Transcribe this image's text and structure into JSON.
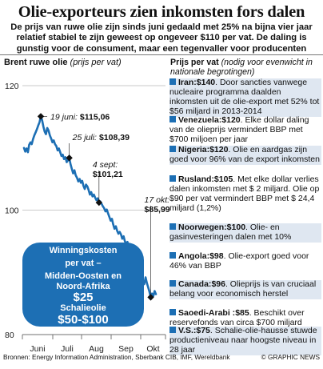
{
  "header": {
    "title": "Olie-exporteurs zien inkomsten fors dalen",
    "subtitle": "De prijs van ruwe olie zijn sinds juni gedaald met 25% na bijna vier jaar relatief stabiel te zijn geweest op ongeveer $110 per vat. De daling is gunstig voor de consument, maar een tegenvaller voor producenten"
  },
  "chart": {
    "title_bold": "Brent ruwe olie",
    "title_italic": "(prijs per vat)"
  },
  "chart_data": {
    "type": "line",
    "title": "Brent ruwe olie (prijs per vat)",
    "ylim": [
      80,
      120
    ],
    "y_ticks": [
      "120",
      "100",
      "80"
    ],
    "x_ticks": [
      "Juni",
      "Juli",
      "Aug",
      "Sep",
      "Okt"
    ],
    "series": [
      {
        "name": "Brent ruwe olie",
        "color": "#1d6fb4",
        "values": [
          110.0,
          109.4,
          109.9,
          109.3,
          110.5,
          110.9,
          110.6,
          111.4,
          112.0,
          112.5,
          113.0,
          113.6,
          114.1,
          115.06,
          114.5,
          113.4,
          112.6,
          112.2,
          113.2,
          112.8,
          112.0,
          111.5,
          110.9,
          111.2,
          110.6,
          110.3,
          109.6,
          109.9,
          109.3,
          108.7,
          108.9,
          108.2,
          108.5,
          107.7,
          108.0,
          108.39,
          107.4,
          106.6,
          105.9,
          106.4,
          105.6,
          105.2,
          104.6,
          105.0,
          104.4,
          104.7,
          103.9,
          103.4,
          104.1,
          103.8,
          103.2,
          102.5,
          102.9,
          102.2,
          102.5,
          102.0,
          101.6,
          101.9,
          101.21,
          101.4,
          101.0,
          100.6,
          100.3,
          99.8,
          100.1,
          99.5,
          98.9,
          98.3,
          98.6,
          97.7,
          97.0,
          97.4,
          96.7,
          96.2,
          96.5,
          96.1,
          95.4,
          95.8,
          95.0,
          94.6,
          94.9,
          94.2,
          93.6,
          93.2,
          92.7,
          92.1,
          91.5,
          90.9,
          91.6,
          91.0,
          90.3,
          89.5,
          88.7,
          88.1,
          89.2,
          88.3,
          87.6,
          86.9,
          85.99,
          86.6,
          86.2,
          87.0,
          86.5
        ]
      }
    ],
    "annotations": [
      {
        "label_italic": "19 juni:",
        "label_bold": "$115,06",
        "value": 115.06
      },
      {
        "label_italic": "25 juli:",
        "label_bold": "$108,39",
        "value": 108.39
      },
      {
        "label_italic": "4 sept:",
        "label_bold": "$101,21",
        "value": 101.21
      },
      {
        "label_italic": "17 okt:",
        "label_bold": "$85,99",
        "value": 85.99
      }
    ]
  },
  "cost_box": {
    "line1": "Winningskosten",
    "line2": "per vat –",
    "line3": "Midden-Oosten en",
    "line4": "Noord-Afrika",
    "value1": "$25",
    "label2": "Schalieolie",
    "value2": "$50-$100"
  },
  "prices": {
    "header_bold": "Prijs per vat",
    "header_italic": "(nodig voor evenwicht in nationale begrotingen)",
    "items": [
      {
        "country": "Iran:",
        "price": "$140",
        "text": ". Door sancties vanwege nucleaire programma daalden inkomsten uit de olie-export met 52% tot $56 miljard in 2013-2014",
        "shaded": true
      },
      {
        "country": "Venezuela:",
        "price": "$120",
        "text": ". Elke dollar daling van de olieprijs vermindert BBP met $700 miljoen per jaar",
        "shaded": false
      },
      {
        "country": "Nigeria:",
        "price": "$120",
        "text": ". Olie en aardgas zijn goed voor 96% van de export inkomsten",
        "shaded": true
      },
      {
        "country": "Rusland:",
        "price": "$105",
        "text": ". Met elke dollar verlies dalen inkomsten met $ 2 miljard. Olie op $90 per vat vermindert BBP met $ 24,4 miljard (1,2%)",
        "shaded": false
      },
      {
        "country": "Noorwegen:",
        "price": "$100",
        "text": ". Olie- en gasinvesteringen dalen met 10%",
        "shaded": true
      },
      {
        "country": "Angola:",
        "price": "$98",
        "text": ". Olie-export goed voor 46% van BBP",
        "shaded": false
      },
      {
        "country": "Canada:",
        "price": "$96",
        "text": ". Olieprijs is van cruciaal belang voor economisch herstel",
        "shaded": true
      },
      {
        "country": "Saoedi-Arabi :",
        "price": "$85",
        "text": ". Beschikt over reservefonds van circa $700 miljard",
        "shaded": false
      },
      {
        "country": "V.S.:",
        "price": "$75",
        "text": ". Schalie-olie-hausse stuwde productieniveau naar hoogste niveau in 28 jaar",
        "shaded": true
      }
    ]
  },
  "footer": {
    "sources": "Bronnen: Energy Information Administration, Sberbank CIB, IMF, Wereldbank",
    "credit": "© GRAPHIC NEWS"
  }
}
